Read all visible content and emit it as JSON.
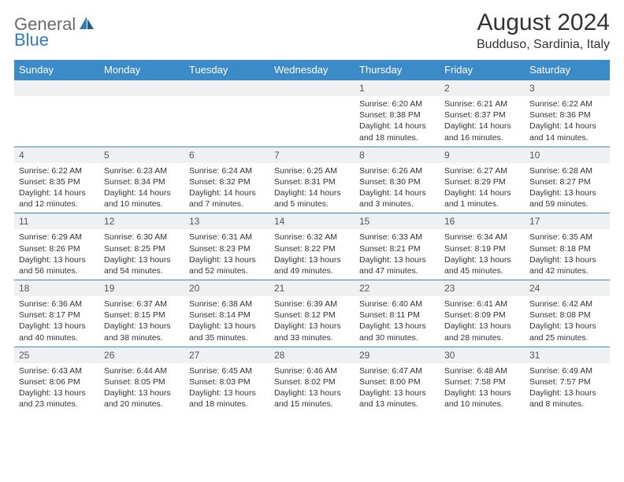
{
  "logo": {
    "part1": "General",
    "part2": "Blue"
  },
  "title": "August 2024",
  "location": "Budduso, Sardinia, Italy",
  "colors": {
    "header_bg": "#3b8bc9",
    "header_text": "#ffffff",
    "daynum_bg": "#eef0f2",
    "border": "#3b8bc9",
    "logo_gray": "#6b6b6b",
    "logo_blue": "#2d7dc0",
    "text": "#333333",
    "background": "#ffffff"
  },
  "typography": {
    "title_fontsize": 30,
    "location_fontsize": 16,
    "weekday_fontsize": 13,
    "daynum_fontsize": 12,
    "body_fontsize": 10.5
  },
  "weekdays": [
    "Sunday",
    "Monday",
    "Tuesday",
    "Wednesday",
    "Thursday",
    "Friday",
    "Saturday"
  ],
  "weeks": [
    [
      null,
      null,
      null,
      null,
      {
        "n": "1",
        "sunrise": "6:20 AM",
        "sunset": "8:38 PM",
        "dl_h": "14",
        "dl_m": "18"
      },
      {
        "n": "2",
        "sunrise": "6:21 AM",
        "sunset": "8:37 PM",
        "dl_h": "14",
        "dl_m": "16"
      },
      {
        "n": "3",
        "sunrise": "6:22 AM",
        "sunset": "8:36 PM",
        "dl_h": "14",
        "dl_m": "14"
      }
    ],
    [
      {
        "n": "4",
        "sunrise": "6:22 AM",
        "sunset": "8:35 PM",
        "dl_h": "14",
        "dl_m": "12"
      },
      {
        "n": "5",
        "sunrise": "6:23 AM",
        "sunset": "8:34 PM",
        "dl_h": "14",
        "dl_m": "10"
      },
      {
        "n": "6",
        "sunrise": "6:24 AM",
        "sunset": "8:32 PM",
        "dl_h": "14",
        "dl_m": "7"
      },
      {
        "n": "7",
        "sunrise": "6:25 AM",
        "sunset": "8:31 PM",
        "dl_h": "14",
        "dl_m": "5"
      },
      {
        "n": "8",
        "sunrise": "6:26 AM",
        "sunset": "8:30 PM",
        "dl_h": "14",
        "dl_m": "3"
      },
      {
        "n": "9",
        "sunrise": "6:27 AM",
        "sunset": "8:29 PM",
        "dl_h": "14",
        "dl_m": "1"
      },
      {
        "n": "10",
        "sunrise": "6:28 AM",
        "sunset": "8:27 PM",
        "dl_h": "13",
        "dl_m": "59"
      }
    ],
    [
      {
        "n": "11",
        "sunrise": "6:29 AM",
        "sunset": "8:26 PM",
        "dl_h": "13",
        "dl_m": "56"
      },
      {
        "n": "12",
        "sunrise": "6:30 AM",
        "sunset": "8:25 PM",
        "dl_h": "13",
        "dl_m": "54"
      },
      {
        "n": "13",
        "sunrise": "6:31 AM",
        "sunset": "8:23 PM",
        "dl_h": "13",
        "dl_m": "52"
      },
      {
        "n": "14",
        "sunrise": "6:32 AM",
        "sunset": "8:22 PM",
        "dl_h": "13",
        "dl_m": "49"
      },
      {
        "n": "15",
        "sunrise": "6:33 AM",
        "sunset": "8:21 PM",
        "dl_h": "13",
        "dl_m": "47"
      },
      {
        "n": "16",
        "sunrise": "6:34 AM",
        "sunset": "8:19 PM",
        "dl_h": "13",
        "dl_m": "45"
      },
      {
        "n": "17",
        "sunrise": "6:35 AM",
        "sunset": "8:18 PM",
        "dl_h": "13",
        "dl_m": "42"
      }
    ],
    [
      {
        "n": "18",
        "sunrise": "6:36 AM",
        "sunset": "8:17 PM",
        "dl_h": "13",
        "dl_m": "40"
      },
      {
        "n": "19",
        "sunrise": "6:37 AM",
        "sunset": "8:15 PM",
        "dl_h": "13",
        "dl_m": "38"
      },
      {
        "n": "20",
        "sunrise": "6:38 AM",
        "sunset": "8:14 PM",
        "dl_h": "13",
        "dl_m": "35"
      },
      {
        "n": "21",
        "sunrise": "6:39 AM",
        "sunset": "8:12 PM",
        "dl_h": "13",
        "dl_m": "33"
      },
      {
        "n": "22",
        "sunrise": "6:40 AM",
        "sunset": "8:11 PM",
        "dl_h": "13",
        "dl_m": "30"
      },
      {
        "n": "23",
        "sunrise": "6:41 AM",
        "sunset": "8:09 PM",
        "dl_h": "13",
        "dl_m": "28"
      },
      {
        "n": "24",
        "sunrise": "6:42 AM",
        "sunset": "8:08 PM",
        "dl_h": "13",
        "dl_m": "25"
      }
    ],
    [
      {
        "n": "25",
        "sunrise": "6:43 AM",
        "sunset": "8:06 PM",
        "dl_h": "13",
        "dl_m": "23"
      },
      {
        "n": "26",
        "sunrise": "6:44 AM",
        "sunset": "8:05 PM",
        "dl_h": "13",
        "dl_m": "20"
      },
      {
        "n": "27",
        "sunrise": "6:45 AM",
        "sunset": "8:03 PM",
        "dl_h": "13",
        "dl_m": "18"
      },
      {
        "n": "28",
        "sunrise": "6:46 AM",
        "sunset": "8:02 PM",
        "dl_h": "13",
        "dl_m": "15"
      },
      {
        "n": "29",
        "sunrise": "6:47 AM",
        "sunset": "8:00 PM",
        "dl_h": "13",
        "dl_m": "13"
      },
      {
        "n": "30",
        "sunrise": "6:48 AM",
        "sunset": "7:58 PM",
        "dl_h": "13",
        "dl_m": "10"
      },
      {
        "n": "31",
        "sunrise": "6:49 AM",
        "sunset": "7:57 PM",
        "dl_h": "13",
        "dl_m": "8"
      }
    ]
  ],
  "labels": {
    "sunrise": "Sunrise:",
    "sunset": "Sunset:",
    "daylight_prefix": "Daylight:",
    "hours_word": "hours",
    "and_word": "and",
    "minutes_word": "minutes."
  }
}
